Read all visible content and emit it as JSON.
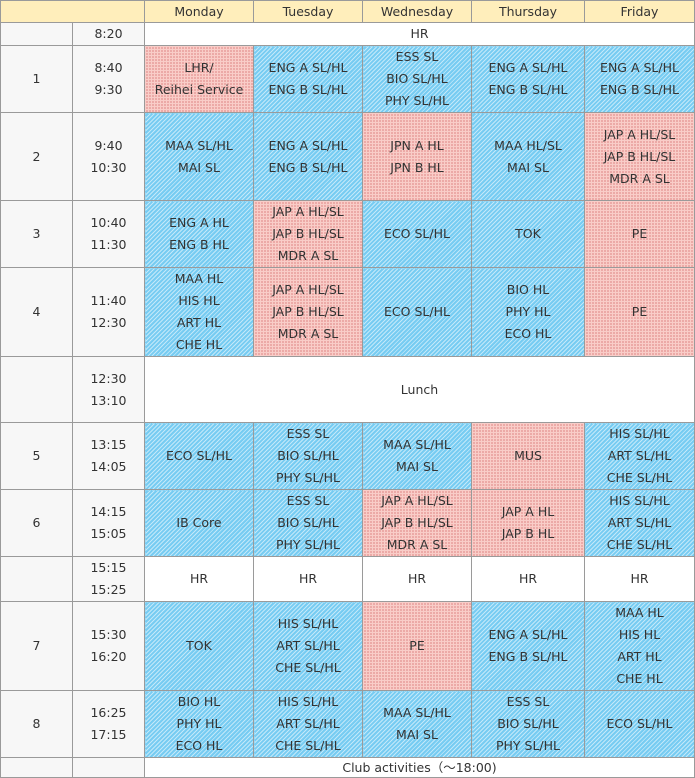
{
  "days": [
    "Monday",
    "Tuesday",
    "Wednesday",
    "Thursday",
    "Friday"
  ],
  "hr_row": {
    "time": "8:20",
    "label": "HR"
  },
  "periods": [
    {
      "num": "1",
      "start": "8:40",
      "end": "9:30",
      "cells": [
        {
          "color": "pink",
          "lines": [
            "LHR/",
            "Reihei Service"
          ]
        },
        {
          "color": "blue",
          "lines": [
            "ENG A SL/HL",
            "ENG B SL/HL"
          ]
        },
        {
          "color": "blue",
          "lines": [
            "ESS SL",
            "BIO SL/HL",
            "PHY SL/HL"
          ]
        },
        {
          "color": "blue",
          "lines": [
            "ENG A SL/HL",
            "ENG B SL/HL"
          ]
        },
        {
          "color": "blue",
          "lines": [
            "ENG A SL/HL",
            "ENG B SL/HL"
          ]
        }
      ]
    },
    {
      "num": "2",
      "start": "9:40",
      "end": "10:30",
      "cells": [
        {
          "color": "blue",
          "lines": [
            "MAA SL/HL",
            "MAI SL"
          ]
        },
        {
          "color": "blue",
          "lines": [
            "ENG A SL/HL",
            "ENG B SL/HL"
          ]
        },
        {
          "color": "pink",
          "lines": [
            "JPN A HL",
            "JPN B HL"
          ]
        },
        {
          "color": "blue",
          "lines": [
            "MAA HL/SL",
            "MAI SL"
          ]
        },
        {
          "color": "pink",
          "lines": [
            "JAP A HL/SL",
            "JAP B HL/SL",
            "MDR A SL"
          ]
        }
      ]
    },
    {
      "num": "3",
      "start": "10:40",
      "end": "11:30",
      "cells": [
        {
          "color": "blue",
          "lines": [
            "ENG A HL",
            "ENG B HL"
          ]
        },
        {
          "color": "pink",
          "lines": [
            "JAP A HL/SL",
            "JAP B HL/SL",
            "MDR A SL"
          ]
        },
        {
          "color": "blue",
          "lines": [
            "ECO SL/HL"
          ]
        },
        {
          "color": "blue",
          "lines": [
            "TOK"
          ]
        },
        {
          "color": "pink",
          "lines": [
            "PE"
          ]
        }
      ]
    },
    {
      "num": "4",
      "start": "11:40",
      "end": "12:30",
      "cells": [
        {
          "color": "blue",
          "lines": [
            "MAA HL",
            "HIS HL",
            "ART HL",
            "CHE HL"
          ]
        },
        {
          "color": "pink",
          "lines": [
            "JAP A HL/SL",
            "JAP B HL/SL",
            "MDR A SL"
          ]
        },
        {
          "color": "blue",
          "lines": [
            "ECO SL/HL"
          ]
        },
        {
          "color": "blue",
          "lines": [
            "BIO HL",
            "PHY HL",
            "ECO HL"
          ]
        },
        {
          "color": "pink",
          "lines": [
            "PE"
          ]
        }
      ]
    }
  ],
  "lunch": {
    "start": "12:30",
    "end": "13:10",
    "label": "Lunch"
  },
  "periods_after": [
    {
      "num": "5",
      "start": "13:15",
      "end": "14:05",
      "cells": [
        {
          "color": "blue",
          "lines": [
            "ECO SL/HL"
          ]
        },
        {
          "color": "blue",
          "lines": [
            "ESS SL",
            "BIO SL/HL",
            "PHY SL/HL"
          ]
        },
        {
          "color": "blue",
          "lines": [
            "MAA SL/HL",
            "MAI SL"
          ]
        },
        {
          "color": "pink",
          "lines": [
            "MUS"
          ]
        },
        {
          "color": "blue",
          "lines": [
            "HIS SL/HL",
            "ART SL/HL",
            "CHE SL/HL"
          ]
        }
      ]
    },
    {
      "num": "6",
      "start": "14:15",
      "end": "15:05",
      "cells": [
        {
          "color": "blue",
          "lines": [
            "IB Core"
          ]
        },
        {
          "color": "blue",
          "lines": [
            "ESS SL",
            "BIO SL/HL",
            "PHY SL/HL"
          ]
        },
        {
          "color": "pink",
          "lines": [
            "JAP A HL/SL",
            "JAP B HL/SL",
            "MDR A SL"
          ]
        },
        {
          "color": "pink",
          "lines": [
            "JAP A HL",
            "JAP B HL"
          ]
        },
        {
          "color": "blue",
          "lines": [
            "HIS SL/HL",
            "ART SL/HL",
            "CHE SL/HL"
          ]
        }
      ]
    }
  ],
  "hr2": {
    "start": "15:15",
    "end": "15:25",
    "cells": [
      "HR",
      "HR",
      "HR",
      "HR",
      "HR"
    ]
  },
  "periods_late": [
    {
      "num": "7",
      "start": "15:30",
      "end": "16:20",
      "cells": [
        {
          "color": "blue",
          "lines": [
            "TOK"
          ]
        },
        {
          "color": "blue",
          "lines": [
            "HIS SL/HL",
            "ART SL/HL",
            "CHE SL/HL"
          ]
        },
        {
          "color": "pink",
          "lines": [
            "PE"
          ]
        },
        {
          "color": "blue",
          "lines": [
            "ENG A SL/HL",
            "ENG B SL/HL"
          ]
        },
        {
          "color": "blue",
          "lines": [
            "MAA HL",
            "HIS HL",
            "ART HL",
            "CHE HL"
          ]
        }
      ]
    },
    {
      "num": "8",
      "start": "16:25",
      "end": "17:15",
      "cells": [
        {
          "color": "blue",
          "lines": [
            "BIO HL",
            "PHY HL",
            "ECO HL"
          ]
        },
        {
          "color": "blue",
          "lines": [
            "HIS SL/HL",
            "ART SL/HL",
            "CHE SL/HL"
          ]
        },
        {
          "color": "blue",
          "lines": [
            "MAA SL/HL",
            "MAI SL"
          ]
        },
        {
          "color": "blue",
          "lines": [
            "ESS SL",
            "BIO SL/HL",
            "PHY SL/HL"
          ]
        },
        {
          "color": "blue",
          "lines": [
            "ECO SL/HL"
          ]
        }
      ]
    }
  ],
  "club": {
    "label": "Club activities（～18:00)"
  },
  "colors": {
    "header": "#ffeebb",
    "blue": "#77ccf2",
    "pink": "#f9cdc8"
  }
}
